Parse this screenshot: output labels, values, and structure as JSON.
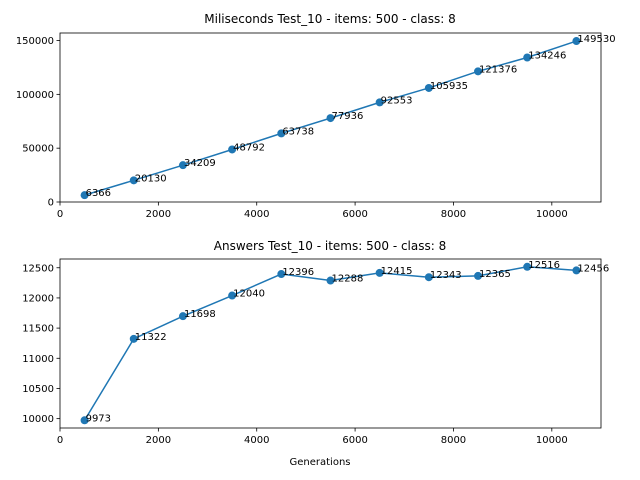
{
  "chart_data": [
    {
      "type": "line",
      "title": "Miliseconds Test_10 - items: 500 - class: 8",
      "xlabel": "",
      "ylabel": "",
      "x": [
        500,
        1500,
        2500,
        3500,
        4500,
        5500,
        6500,
        7500,
        8500,
        9500,
        10500
      ],
      "values": [
        6366,
        20130,
        34209,
        48792,
        63738,
        77936,
        92553,
        105935,
        121376,
        134246,
        149530
      ],
      "xlim": [
        0,
        11000
      ],
      "ylim": [
        0,
        157000
      ],
      "xticks": [
        0,
        2000,
        4000,
        6000,
        8000,
        10000
      ],
      "yticks": [
        0,
        50000,
        100000,
        150000
      ],
      "grid": false,
      "color": "#1f77b4"
    },
    {
      "type": "line",
      "title": "Answers Test_10 - items: 500 - class: 8",
      "xlabel": "Generations",
      "ylabel": "",
      "x": [
        500,
        1500,
        2500,
        3500,
        4500,
        5500,
        6500,
        7500,
        8500,
        9500,
        10500
      ],
      "values": [
        9973,
        11322,
        11698,
        12040,
        12396,
        12288,
        12415,
        12343,
        12365,
        12516,
        12456
      ],
      "xlim": [
        0,
        11000
      ],
      "ylim": [
        9845,
        12645
      ],
      "xticks": [
        0,
        2000,
        4000,
        6000,
        8000,
        10000
      ],
      "yticks": [
        10000,
        10500,
        11000,
        11500,
        12000,
        12500
      ],
      "grid": false,
      "color": "#1f77b4"
    }
  ]
}
